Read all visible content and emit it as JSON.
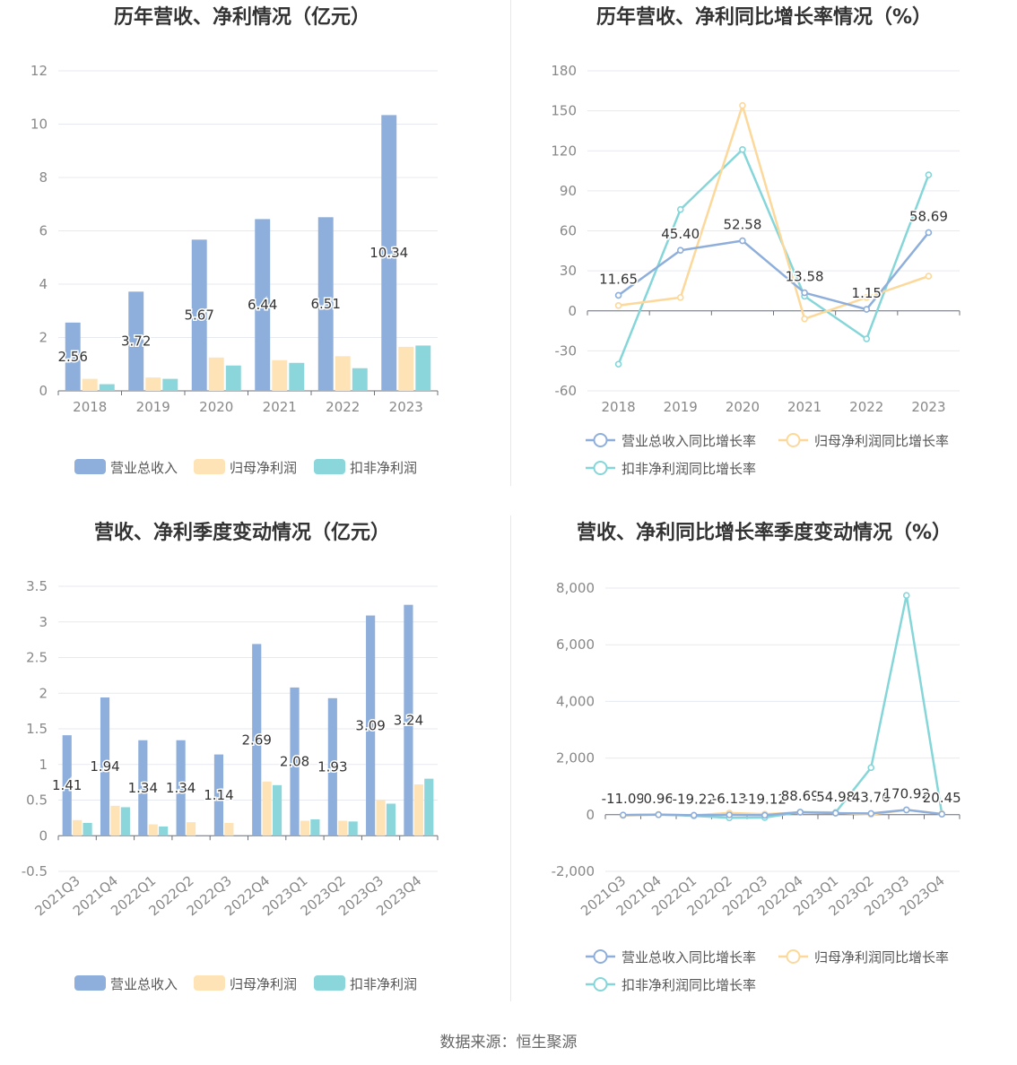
{
  "colors": {
    "revenue": "#8eaedb",
    "net_profit": "#fde3b6",
    "deducted": "#8ad6da",
    "line_revenue": "#8eaedb",
    "line_net": "#fcd89a",
    "line_deducted": "#85d6d9"
  },
  "source_text": "数据来源：恒生聚源",
  "chart_data": [
    {
      "type": "bar",
      "title": "历年营收、净利情况（亿元）",
      "categories": [
        "2018",
        "2019",
        "2020",
        "2021",
        "2022",
        "2023"
      ],
      "ylim": [
        0,
        12
      ],
      "yticks": [
        0,
        2,
        4,
        6,
        8,
        10,
        12
      ],
      "series": [
        {
          "name": "营业总收入",
          "values": [
            2.56,
            3.72,
            5.67,
            6.44,
            6.51,
            10.34
          ],
          "labels": [
            "2.56",
            "3.72",
            "5.67",
            "6.44",
            "6.51",
            "10.34"
          ]
        },
        {
          "name": "归母净利润",
          "values": [
            0.45,
            0.5,
            1.25,
            1.15,
            1.3,
            1.65
          ]
        },
        {
          "name": "扣非净利润",
          "values": [
            0.25,
            0.45,
            0.95,
            1.05,
            0.85,
            1.7
          ]
        }
      ],
      "legend": "bottom"
    },
    {
      "type": "line",
      "title": "历年营收、净利同比增长率情况（%）",
      "categories": [
        "2018",
        "2019",
        "2020",
        "2021",
        "2022",
        "2023"
      ],
      "ylim": [
        -60,
        180
      ],
      "yticks": [
        -60,
        -30,
        0,
        30,
        60,
        90,
        120,
        150,
        180
      ],
      "series": [
        {
          "name": "营业总收入同比增长率",
          "values": [
            11.65,
            45.4,
            52.58,
            13.58,
            1.15,
            58.69
          ],
          "labels": [
            "11.65",
            "45.40",
            "52.58",
            "13.58",
            "1.15",
            "58.69"
          ]
        },
        {
          "name": "归母净利润同比增长率",
          "values": [
            4,
            10,
            154,
            -6,
            10,
            26
          ]
        },
        {
          "name": "扣非净利润同比增长率",
          "values": [
            -40,
            76,
            121,
            11,
            -21,
            102
          ]
        }
      ],
      "legend": "bottom"
    },
    {
      "type": "bar",
      "title": "营收、净利季度变动情况（亿元）",
      "categories": [
        "2021Q3",
        "2021Q4",
        "2022Q1",
        "2022Q2",
        "2022Q3",
        "2022Q4",
        "2023Q1",
        "2023Q2",
        "2023Q3",
        "2023Q4"
      ],
      "ylim": [
        -0.5,
        3.5
      ],
      "yticks": [
        -0.5,
        0,
        0.5,
        1,
        1.5,
        2,
        2.5,
        3,
        3.5
      ],
      "series": [
        {
          "name": "营业总收入",
          "values": [
            1.41,
            1.94,
            1.34,
            1.34,
            1.14,
            2.69,
            2.08,
            1.93,
            3.09,
            3.24
          ],
          "labels": [
            "1.41",
            "1.94",
            "1.34",
            "1.34",
            "1.14",
            "2.69",
            "2.08",
            "1.93",
            "3.09",
            "3.24"
          ]
        },
        {
          "name": "归母净利润",
          "values": [
            0.22,
            0.42,
            0.16,
            0.19,
            0.18,
            0.76,
            0.21,
            0.21,
            0.5,
            0.72
          ]
        },
        {
          "name": "扣非净利润",
          "values": [
            0.18,
            0.4,
            0.13,
            0.0,
            0.0,
            0.71,
            0.23,
            0.2,
            0.45,
            0.8
          ]
        }
      ],
      "legend": "bottom"
    },
    {
      "type": "line",
      "title": "营收、净利同比增长率季度变动情况（%）",
      "categories": [
        "2021Q3",
        "2021Q4",
        "2022Q1",
        "2022Q2",
        "2022Q3",
        "2022Q4",
        "2023Q1",
        "2023Q2",
        "2023Q3",
        "2023Q4"
      ],
      "ylim": [
        -2000,
        8000
      ],
      "yticks": [
        -2000,
        0,
        2000,
        4000,
        6000,
        8000
      ],
      "ytick_labels": [
        "-2,000",
        "0",
        "2,000",
        "4,000",
        "6,000",
        "8,000"
      ],
      "series": [
        {
          "name": "营业总收入同比增长率",
          "values": [
            -11.09,
            0.96,
            -19.22,
            -6.13,
            -19.12,
            88.69,
            54.98,
            43.76,
            170.92,
            20.45
          ],
          "labels": [
            "-11.09",
            "0.96",
            "-19.22",
            "-6.13",
            "-19.12",
            "88.69",
            "54.98",
            "43.76",
            "170.92",
            "20.45"
          ]
        },
        {
          "name": "归母净利润同比增长率",
          "values": [
            -30,
            10,
            -20,
            60,
            20,
            80,
            60,
            10,
            170,
            30
          ]
        },
        {
          "name": "扣非净利润同比增长率",
          "values": [
            -20,
            5,
            -40,
            -110,
            -100,
            90,
            80,
            1660,
            7740,
            30
          ]
        }
      ],
      "legend": "bottom"
    }
  ]
}
